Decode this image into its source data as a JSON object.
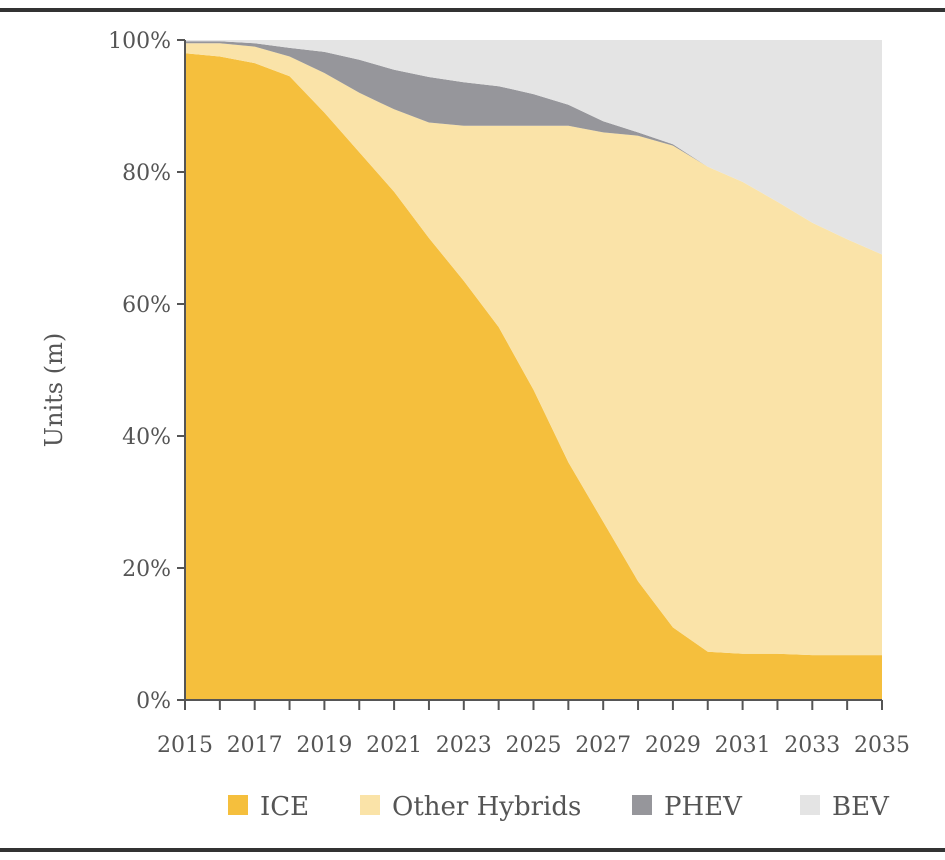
{
  "chart_data": {
    "type": "area",
    "stacked": true,
    "normalized_percent": true,
    "title": "",
    "xlabel": "",
    "ylabel": "Units (m)",
    "ylim": [
      0,
      100
    ],
    "y_ticks": [
      "0%",
      "20%",
      "40%",
      "60%",
      "80%",
      "100%"
    ],
    "x_ticks": [
      "2015",
      "2017",
      "2019",
      "2021",
      "2023",
      "2025",
      "2027",
      "2029",
      "2031",
      "2033",
      "2035"
    ],
    "x": [
      2015,
      2016,
      2017,
      2018,
      2019,
      2020,
      2021,
      2022,
      2023,
      2024,
      2025,
      2026,
      2027,
      2028,
      2029,
      2030,
      2031,
      2032,
      2033,
      2034,
      2035
    ],
    "grid": false,
    "legend_position": "bottom",
    "series": [
      {
        "name": "ICE",
        "color": "#F5BF3D",
        "values": [
          98,
          97.5,
          96.5,
          94.5,
          89,
          83,
          77,
          70,
          63.5,
          56.5,
          47,
          36,
          27,
          18,
          11,
          7.3,
          7,
          7,
          6.8,
          6.8,
          6.8
        ]
      },
      {
        "name": "Other Hybrids",
        "color": "#FAE3A8",
        "values": [
          1.5,
          2,
          2.5,
          3,
          6,
          9,
          12.5,
          17.5,
          23.5,
          30.5,
          40,
          51,
          59,
          67.5,
          73,
          73.5,
          71.5,
          68.5,
          65.5,
          63,
          60.7
        ]
      },
      {
        "name": "PHEV",
        "color": "#96969B",
        "values": [
          0.3,
          0.3,
          0.5,
          1.3,
          3.2,
          5,
          6,
          6.9,
          6.6,
          6,
          4.8,
          3.2,
          1.7,
          0.5,
          0.2,
          0,
          0,
          0,
          0,
          0,
          0
        ]
      },
      {
        "name": "BEV",
        "color": "#E4E4E4",
        "values": [
          0.2,
          0.2,
          0.5,
          1.2,
          1.8,
          3,
          4.5,
          5.6,
          6.4,
          7,
          8.2,
          9.8,
          12.3,
          14,
          15.8,
          19.2,
          21.5,
          24.5,
          27.7,
          30.2,
          32.5
        ]
      }
    ]
  }
}
